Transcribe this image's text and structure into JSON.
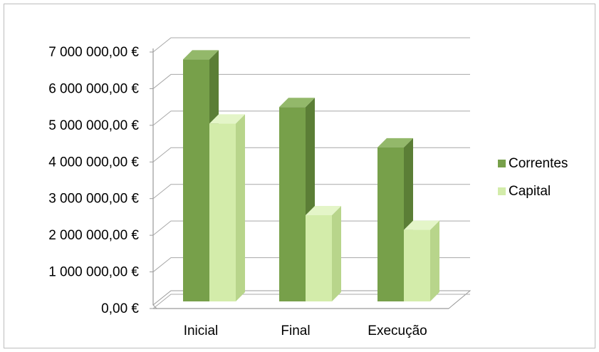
{
  "chart_data": {
    "type": "bar",
    "style": "3d-clustered-column",
    "categories": [
      "Inicial",
      "Final",
      "Execução"
    ],
    "series": [
      {
        "name": "Correntes",
        "values": [
          6700000,
          5400000,
          4300000
        ],
        "color": "#77a04a",
        "side_color": "#5b7e36",
        "top_color": "#93b86a"
      },
      {
        "name": "Capital",
        "values": [
          4950000,
          2450000,
          2050000
        ],
        "color": "#d3ecaa",
        "side_color": "#b8d58b",
        "top_color": "#e4f5c8"
      }
    ],
    "y_ticks": [
      "0,00 €",
      "1 000 000,00 €",
      "2 000 000,00 €",
      "3 000 000,00 €",
      "4 000 000,00 €",
      "5 000 000,00 €",
      "6 000 000,00 €",
      "7 000 000,00 €"
    ],
    "ylim": [
      0,
      7000000
    ],
    "grid": true,
    "legend_position": "right"
  }
}
